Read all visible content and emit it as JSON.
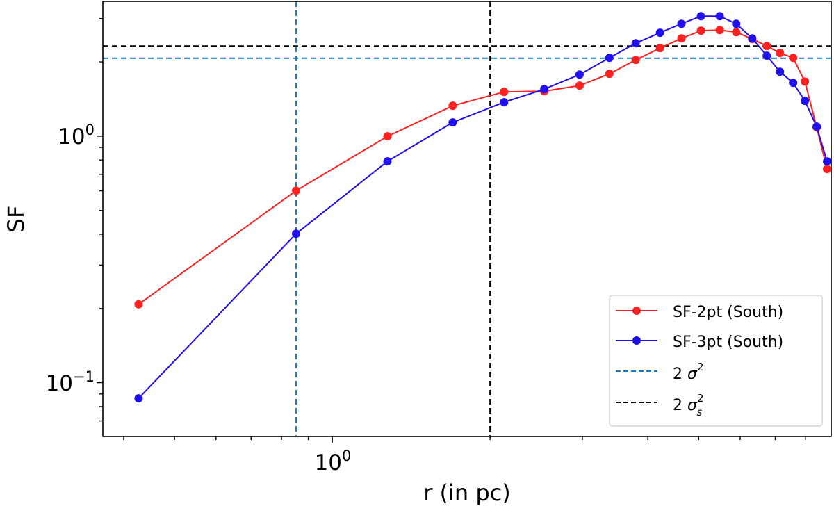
{
  "chart_data": {
    "type": "line",
    "title": "",
    "xlabel": "r (in pc)",
    "ylabel": "SF",
    "xscale": "log",
    "yscale": "log",
    "xlim": [
      0.365,
      8.95
    ],
    "ylim": [
      0.0605,
      3.52
    ],
    "grid": false,
    "legend_position": "lower-right",
    "x_major_ticks": [
      {
        "value": 1,
        "base": "10",
        "exp": "0"
      }
    ],
    "y_major_ticks": [
      {
        "value": 1,
        "base": "10",
        "exp": "0"
      },
      {
        "value": 0.1,
        "base": "10",
        "exp": "−1"
      }
    ],
    "x": [
      0.427,
      0.853,
      1.274,
      1.697,
      2.126,
      2.537,
      2.963,
      3.378,
      3.792,
      4.219,
      4.636,
      5.05,
      5.483,
      5.896,
      6.326,
      6.744,
      7.145,
      7.57,
      7.973,
      8.398,
      8.788
    ],
    "series": [
      {
        "name": "SF-2pt (South)",
        "color": "#ff2020",
        "marker": "circle",
        "values": [
          0.208,
          0.601,
          0.998,
          1.328,
          1.512,
          1.522,
          1.603,
          1.79,
          2.038,
          2.276,
          2.492,
          2.677,
          2.694,
          2.642,
          2.476,
          2.32,
          2.175,
          2.078,
          1.666,
          1.086,
          0.736
        ]
      },
      {
        "name": "SF-3pt (South)",
        "color": "#2010f0",
        "marker": "circle",
        "values": [
          0.0864,
          0.402,
          0.79,
          1.137,
          1.372,
          1.551,
          1.778,
          2.078,
          2.381,
          2.626,
          2.856,
          3.067,
          3.067,
          2.856,
          2.492,
          2.119,
          1.825,
          1.645,
          1.39,
          1.093,
          0.79
        ]
      }
    ],
    "reference_lines": [
      {
        "orientation": "horizontal",
        "value": 2.07,
        "color": "#1f77b4",
        "style": "dashed",
        "legend": {
          "prefix": "2 ",
          "symbol": "σ",
          "sup": "2",
          "sub": ""
        }
      },
      {
        "orientation": "horizontal",
        "value": 2.32,
        "color": "#000000",
        "style": "dashed",
        "legend": {
          "prefix": "2 ",
          "symbol": "σ",
          "sup": "2",
          "sub": "s"
        }
      },
      {
        "orientation": "vertical",
        "value": 0.853,
        "color": "#1f77b4",
        "style": "dashed"
      },
      {
        "orientation": "vertical",
        "value": 2.0,
        "color": "#000000",
        "style": "dashed"
      }
    ]
  }
}
